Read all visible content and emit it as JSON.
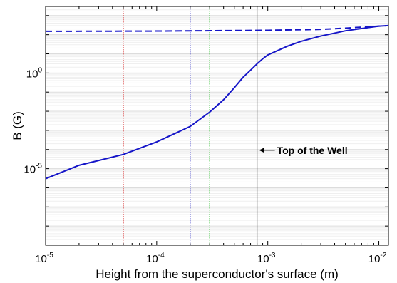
{
  "chart_data": {
    "type": "line",
    "xlabel": "Height from the superconductor's surface (m)",
    "ylabel": "B (G)",
    "xscale": "log",
    "yscale": "log",
    "xlim": [
      1e-05,
      0.0122
    ],
    "ylim": [
      1e-09,
      3000.0
    ],
    "grid": "horizontal minor lines",
    "x_ticks": [
      {
        "base": "10",
        "exp": "-5",
        "value": 1e-05
      },
      {
        "base": "10",
        "exp": "-4",
        "value": 0.0001
      },
      {
        "base": "10",
        "exp": "-3",
        "value": 0.001
      },
      {
        "base": "10",
        "exp": "-2",
        "value": 0.01
      }
    ],
    "y_ticks": [
      {
        "base": "10",
        "exp": "0",
        "value": 1
      },
      {
        "base": "10",
        "exp": "-5",
        "value": 1e-05
      }
    ],
    "series": [
      {
        "style": "solid",
        "color": "#1515c8",
        "x": [
          1e-05,
          2e-05,
          5e-05,
          0.0001,
          0.0002,
          0.0003,
          0.0004,
          0.0005,
          0.0006,
          0.0007,
          0.0008,
          0.0009,
          0.001,
          0.0015,
          0.002,
          0.003,
          0.005,
          0.01,
          0.0122
        ],
        "y": [
          3e-06,
          1.5e-05,
          5.5e-05,
          0.00025,
          0.0016,
          0.009,
          0.04,
          0.17,
          0.6,
          1.4,
          3.0,
          5.5,
          8.7,
          25.0,
          45.0,
          85.0,
          160.0,
          280.0,
          300.0
        ]
      },
      {
        "style": "dashed",
        "color": "#1515c8",
        "x": [
          1e-05,
          0.0001,
          0.001,
          0.003,
          0.005,
          0.01,
          0.0122
        ],
        "y": [
          150.0,
          155.0,
          170.0,
          190.0,
          220.0,
          280.0,
          300.0
        ]
      }
    ],
    "vertical_lines": [
      {
        "x": 5e-05,
        "color": "#d42a2a",
        "style": "dotted"
      },
      {
        "x": 0.0002,
        "color": "#1f1fc0",
        "style": "dotted"
      },
      {
        "x": 0.0003,
        "color": "#22bb22",
        "style": "dotted"
      },
      {
        "x": 0.0008,
        "color": "#333333",
        "style": "solid"
      }
    ],
    "annotation": {
      "text": "Top of the Well",
      "arrow_to_x": 0.0008,
      "y": 0.0001
    }
  }
}
